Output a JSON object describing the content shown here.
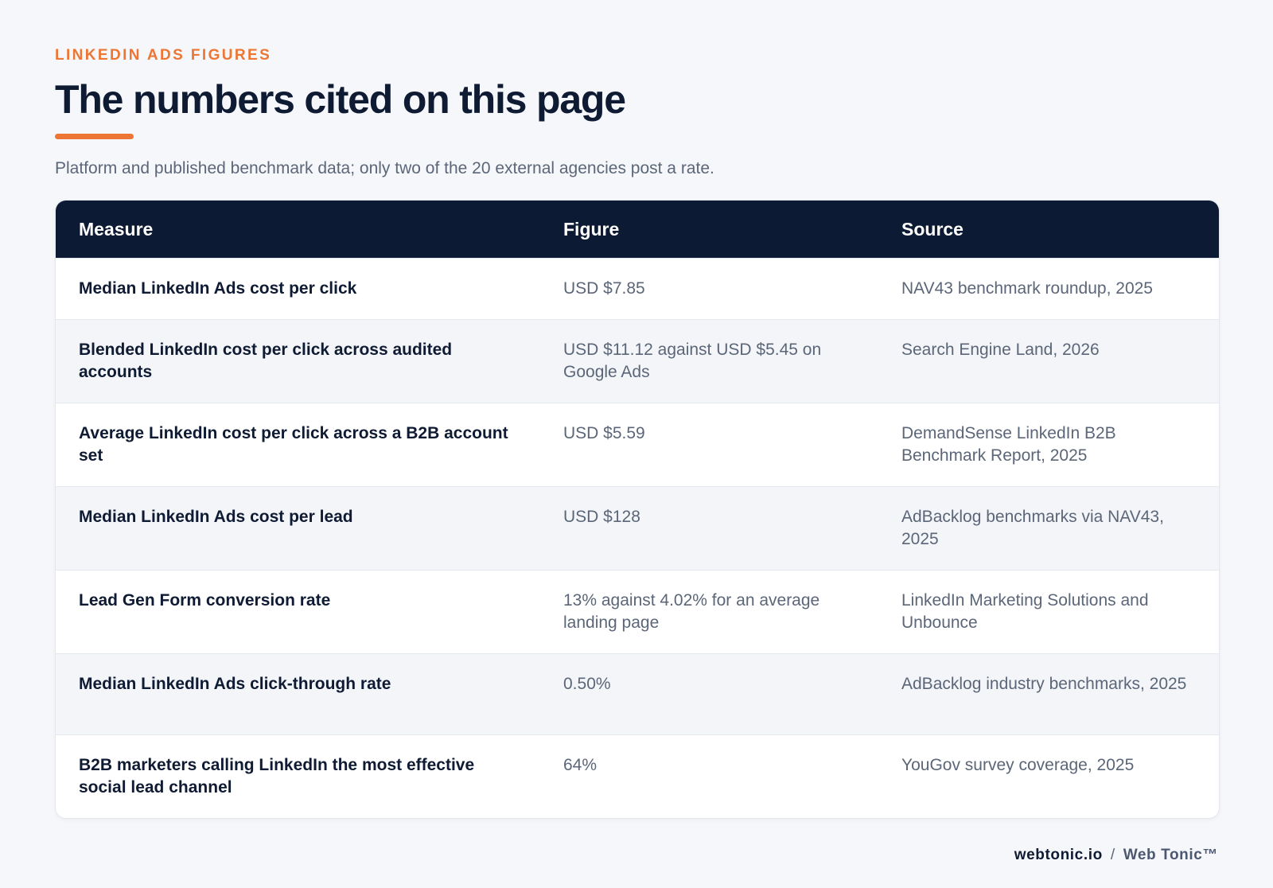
{
  "header": {
    "eyebrow": "LINKEDIN ADS FIGURES",
    "title": "The numbers cited on this page",
    "subtitle": "Platform and published benchmark data; only two of the 20 external agencies post a rate."
  },
  "colors": {
    "accent": "#ee7634",
    "navy": "#0c1a33",
    "muted_text": "#5b6678",
    "background": "#f6f7fa"
  },
  "table": {
    "columns": [
      "Measure",
      "Figure",
      "Source"
    ],
    "rows": [
      {
        "measure": "Median LinkedIn Ads cost per click",
        "figure": "USD $7.85",
        "source": "NAV43 benchmark roundup, 2025"
      },
      {
        "measure": "Blended LinkedIn cost per click across audited accounts",
        "figure": "USD $11.12 against USD $5.45 on Google Ads",
        "source": "Search Engine Land, 2026"
      },
      {
        "measure": "Average LinkedIn cost per click across a B2B account set",
        "figure": "USD $5.59",
        "source": "DemandSense LinkedIn B2B Benchmark Report, 2025"
      },
      {
        "measure": "Median LinkedIn Ads cost per lead",
        "figure": "USD $128",
        "source": "AdBacklog benchmarks via NAV43, 2025"
      },
      {
        "measure": "Lead Gen Form conversion rate",
        "figure": "13% against 4.02% for an average landing page",
        "source": "LinkedIn Marketing Solutions and Unbounce"
      },
      {
        "measure": "Median LinkedIn Ads click-through rate",
        "figure": "0.50%",
        "source": "AdBacklog industry benchmarks, 2025"
      },
      {
        "measure": "B2B marketers calling LinkedIn the most effective social lead channel",
        "figure": "64%",
        "source": "YouGov survey coverage, 2025"
      }
    ]
  },
  "footer": {
    "domain": "webtonic.io",
    "separator": "/",
    "brand": "Web Tonic™"
  }
}
